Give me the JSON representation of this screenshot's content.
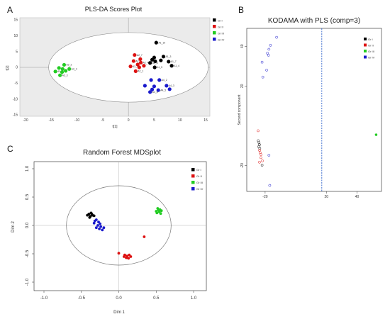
{
  "panels": {
    "a": "A",
    "b": "B",
    "c": "C"
  },
  "colors": {
    "Gr I": "#000000",
    "Gr II": "#dd1111",
    "Gr III": "#22cc22",
    "Gr IV": "#1a1acc",
    "cutline": "#3366cc"
  },
  "chart_data": [
    {
      "type": "scatter",
      "title": "PLS-DA Scores Plot",
      "xlabel": "t[1]",
      "ylabel": "t[2]",
      "xlim": [
        -20,
        15
      ],
      "ylim": [
        -15,
        15
      ],
      "xticks": [
        "-20",
        "-15",
        "-10",
        "-5",
        "0",
        "5",
        "10",
        "15"
      ],
      "yticks": [
        "-15",
        "-10",
        "-5",
        "0",
        "5",
        "10",
        "15"
      ],
      "ellipse": {
        "cx": 0,
        "cy": 0,
        "rx": 15.5,
        "ry": 11
      },
      "legend": [
        "Gr I",
        "Gr II",
        "Gr III",
        "Gr IV"
      ],
      "series": [
        {
          "name": "Gr I",
          "points": [
            {
              "x": 5.4,
              "y": 7.8,
              "label": "A1_10"
            },
            {
              "x": 6.8,
              "y": 3.4,
              "label": "A1_3"
            },
            {
              "x": 5.0,
              "y": 3.1,
              "label": ""
            },
            {
              "x": 5.2,
              "y": 1.9,
              "label": ""
            },
            {
              "x": 4.6,
              "y": 2.4,
              "label": ""
            },
            {
              "x": 6.3,
              "y": 2.2,
              "label": ""
            },
            {
              "x": 7.8,
              "y": 1.8,
              "label": "A1_7"
            },
            {
              "x": 8.4,
              "y": 0.5,
              "label": "A1_4"
            },
            {
              "x": 4.2,
              "y": 1.4,
              "label": "A1_8"
            },
            {
              "x": 5.1,
              "y": 0.0,
              "label": "A1_5"
            }
          ]
        },
        {
          "name": "Gr II",
          "points": [
            {
              "x": 1.2,
              "y": 3.9,
              "label": "A2_7"
            },
            {
              "x": 1.0,
              "y": 2.0,
              "label": "A2_5"
            },
            {
              "x": 2.3,
              "y": 2.6,
              "label": ""
            },
            {
              "x": 1.8,
              "y": 0.9,
              "label": ""
            },
            {
              "x": 2.4,
              "y": 1.5,
              "label": "A2_4"
            },
            {
              "x": 0.4,
              "y": 0.3,
              "label": "A2_3"
            },
            {
              "x": 2.1,
              "y": 0.0,
              "label": ""
            },
            {
              "x": 1.4,
              "y": -1.2,
              "label": "A2_1"
            },
            {
              "x": 3.0,
              "y": 0.5,
              "label": ""
            }
          ]
        },
        {
          "name": "Gr III",
          "points": [
            {
              "x": -12.5,
              "y": 0.8,
              "label": "A3_2"
            },
            {
              "x": -13.5,
              "y": -0.2,
              "label": ""
            },
            {
              "x": -12.8,
              "y": -0.5,
              "label": ""
            },
            {
              "x": -11.5,
              "y": -0.5,
              "label": "A3_4"
            },
            {
              "x": -14.2,
              "y": -1.3,
              "label": "A3_1"
            },
            {
              "x": -12.9,
              "y": -1.5,
              "label": ""
            },
            {
              "x": -13.3,
              "y": -2.5,
              "label": "A3_3"
            },
            {
              "x": -12.2,
              "y": -1.1,
              "label": ""
            }
          ]
        },
        {
          "name": "Gr IV",
          "points": [
            {
              "x": 4.4,
              "y": -4.0,
              "label": ""
            },
            {
              "x": 6.0,
              "y": -4.0,
              "label": "A4_2"
            },
            {
              "x": 3.2,
              "y": -5.8,
              "label": ""
            },
            {
              "x": 5.0,
              "y": -6.0,
              "label": ""
            },
            {
              "x": 7.4,
              "y": -5.8,
              "label": "A4_3"
            },
            {
              "x": 4.6,
              "y": -7.0,
              "label": ""
            },
            {
              "x": 5.8,
              "y": -7.2,
              "label": "A4_5"
            },
            {
              "x": 8.0,
              "y": -6.9,
              "label": ""
            },
            {
              "x": 4.2,
              "y": -7.8,
              "label": "A4_6"
            }
          ]
        }
      ]
    },
    {
      "type": "scatter",
      "title": "KODAMA with PLS (comp=3)",
      "xlabel": "",
      "ylabel": "Second component",
      "xlim": [
        -32,
        56
      ],
      "ylim": [
        -33,
        49
      ],
      "xticks": [
        "-20",
        "20",
        "40"
      ],
      "yticks": [
        "-20",
        "20",
        "40"
      ],
      "vline": 17,
      "legend": [
        "Gr I",
        "Gr II",
        "Gr III",
        "Gr IV"
      ],
      "series": [
        {
          "name": "Gr I",
          "points": [
            {
              "x": -24.5,
              "y": -7.5
            },
            {
              "x": -24,
              "y": -8.5
            },
            {
              "x": -23.7,
              "y": -9.5
            },
            {
              "x": -24.2,
              "y": -10.5
            },
            {
              "x": -23.5,
              "y": -11.3
            },
            {
              "x": -22,
              "y": -19.8
            }
          ]
        },
        {
          "name": "Gr II",
          "points": [
            {
              "x": -24.6,
              "y": -2.5
            },
            {
              "x": -23.7,
              "y": -12.3
            },
            {
              "x": -23.3,
              "y": -13.5
            },
            {
              "x": -22.7,
              "y": -14.5
            },
            {
              "x": -22.8,
              "y": -16
            },
            {
              "x": -21.8,
              "y": -17.6
            },
            {
              "x": -23.7,
              "y": -18.3
            }
          ]
        },
        {
          "name": "Gr III",
          "points": [
            {
              "x": 52.5,
              "y": -4.5
            }
          ]
        },
        {
          "name": "Gr IV",
          "points": [
            {
              "x": -12.5,
              "y": 44.5
            },
            {
              "x": -16.5,
              "y": 40.5
            },
            {
              "x": -17.5,
              "y": 38.5
            },
            {
              "x": -18.5,
              "y": 36.5
            },
            {
              "x": -17.8,
              "y": 35.5
            },
            {
              "x": -22,
              "y": 32
            },
            {
              "x": -19,
              "y": 28
            },
            {
              "x": -21.5,
              "y": 24.5
            },
            {
              "x": -17.5,
              "y": -14.8
            },
            {
              "x": -17,
              "y": -30
            }
          ]
        }
      ]
    },
    {
      "type": "scatter",
      "title": "Random Forest MDSplot",
      "xlabel": "Dim 1",
      "ylabel": "Dim 2",
      "xlim": [
        -1.0,
        1.0
      ],
      "ylim": [
        -1.0,
        1.0
      ],
      "xticks": [
        "-1.0",
        "-0.5",
        "0.0",
        "0.5",
        "1.0"
      ],
      "yticks": [
        "-1.0",
        "-0.5",
        "0.0",
        "0.5",
        "1.0"
      ],
      "circle_radius": 0.7,
      "legend": [
        "Gr I",
        "Gr II",
        "Gr III",
        "Gr IV"
      ],
      "series": [
        {
          "name": "Gr I",
          "points": [
            {
              "x": -0.4,
              "y": 0.2
            },
            {
              "x": -0.37,
              "y": 0.22
            },
            {
              "x": -0.35,
              "y": 0.18
            },
            {
              "x": -0.42,
              "y": 0.18
            },
            {
              "x": -0.38,
              "y": 0.16
            },
            {
              "x": -0.33,
              "y": 0.17
            },
            {
              "x": -0.36,
              "y": 0.2
            },
            {
              "x": -0.39,
              "y": 0.14
            }
          ]
        },
        {
          "name": "Gr II",
          "points": [
            {
              "x": 0.34,
              "y": -0.2
            },
            {
              "x": 0.0,
              "y": -0.49
            },
            {
              "x": 0.08,
              "y": -0.52
            },
            {
              "x": 0.11,
              "y": -0.54
            },
            {
              "x": 0.14,
              "y": -0.52
            },
            {
              "x": 0.1,
              "y": -0.57
            },
            {
              "x": 0.13,
              "y": -0.58
            },
            {
              "x": 0.16,
              "y": -0.55
            },
            {
              "x": 0.07,
              "y": -0.55
            }
          ]
        },
        {
          "name": "Gr III",
          "points": [
            {
              "x": 0.52,
              "y": 0.3
            },
            {
              "x": 0.55,
              "y": 0.28
            },
            {
              "x": 0.5,
              "y": 0.25
            },
            {
              "x": 0.54,
              "y": 0.24
            },
            {
              "x": 0.57,
              "y": 0.26
            },
            {
              "x": 0.51,
              "y": 0.22
            },
            {
              "x": 0.56,
              "y": 0.21
            },
            {
              "x": 0.53,
              "y": 0.27
            }
          ]
        },
        {
          "name": "Gr IV",
          "points": [
            {
              "x": -0.3,
              "y": 0.1
            },
            {
              "x": -0.27,
              "y": 0.06
            },
            {
              "x": -0.33,
              "y": 0.04
            },
            {
              "x": -0.28,
              "y": 0.0
            },
            {
              "x": -0.24,
              "y": -0.02
            },
            {
              "x": -0.3,
              "y": -0.04
            },
            {
              "x": -0.26,
              "y": -0.06
            },
            {
              "x": -0.22,
              "y": -0.08
            },
            {
              "x": -0.2,
              "y": -0.04
            },
            {
              "x": -0.32,
              "y": 0.08
            },
            {
              "x": -0.25,
              "y": 0.03
            }
          ]
        }
      ]
    }
  ]
}
